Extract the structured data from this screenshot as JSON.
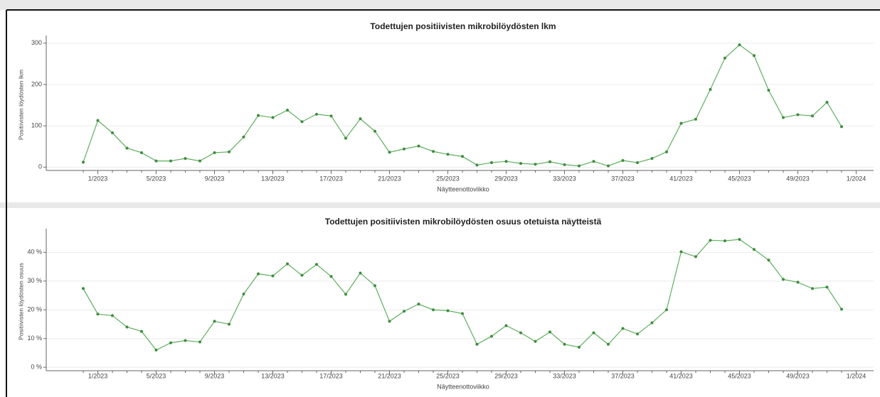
{
  "chart_data": [
    {
      "type": "line",
      "title": "Todettujen positiivisten mikrobilöydösten lkm",
      "x_label": "Näytteenottoviikko",
      "y_label": "Positiivisten löydösten lkm",
      "categories": [
        null,
        "1/2023",
        null,
        null,
        null,
        "5/2023",
        null,
        null,
        null,
        "9/2023",
        null,
        null,
        null,
        "13/2023",
        null,
        null,
        null,
        "17/2023",
        null,
        null,
        null,
        "21/2023",
        null,
        null,
        null,
        "25/2023",
        null,
        null,
        null,
        "29/2023",
        null,
        null,
        null,
        "33/2023",
        null,
        null,
        null,
        "37/2023",
        null,
        null,
        null,
        "41/2023",
        null,
        null,
        null,
        "45/2023",
        null,
        null,
        null,
        "49/2023",
        null,
        null,
        null,
        "1/2024"
      ],
      "values": [
        12,
        113,
        83,
        46,
        35,
        15,
        15,
        21,
        15,
        35,
        37,
        73,
        125,
        120,
        138,
        110,
        128,
        124,
        70,
        117,
        87,
        36,
        44,
        51,
        38,
        31,
        26,
        5,
        11,
        14,
        9,
        7,
        13,
        6,
        3,
        14,
        3,
        16,
        11,
        21,
        37,
        106,
        116,
        188,
        264,
        296,
        270,
        186,
        120,
        127,
        124,
        157,
        98,
        null
      ],
      "color": "#5fae5f",
      "ylim": [
        -8,
        310
      ],
      "yticks": [
        0,
        100,
        200,
        300
      ],
      "grid": true
    },
    {
      "type": "line",
      "title": "Todettujen positiivisten mikrobilöydösten osuus otetuista näytteistä",
      "x_label": "Näytteenottoviikko",
      "y_label": "Positiivisten löydösten osuus",
      "categories": [
        null,
        "1/2023",
        null,
        null,
        null,
        "5/2023",
        null,
        null,
        null,
        "9/2023",
        null,
        null,
        null,
        "13/2023",
        null,
        null,
        null,
        "17/2023",
        null,
        null,
        null,
        "21/2023",
        null,
        null,
        null,
        "25/2023",
        null,
        null,
        null,
        "29/2023",
        null,
        null,
        null,
        "33/2023",
        null,
        null,
        null,
        "37/2023",
        null,
        null,
        null,
        "41/2023",
        null,
        null,
        null,
        "45/2023",
        null,
        null,
        null,
        "49/2023",
        null,
        null,
        null,
        "1/2024"
      ],
      "values": [
        27.4,
        18.5,
        18,
        14,
        12.5,
        6,
        8.5,
        9.3,
        8.8,
        16,
        15,
        25.5,
        32.5,
        31.8,
        36,
        32,
        35.8,
        31.6,
        25.4,
        32.8,
        28.4,
        16,
        19.5,
        22,
        20,
        19.7,
        18.7,
        8,
        10.8,
        14.5,
        12,
        9,
        12.3,
        8,
        7,
        12,
        8,
        13.5,
        11.6,
        15.5,
        20,
        40.2,
        38.5,
        44.2,
        44,
        44.5,
        41,
        37.3,
        30.6,
        29.6,
        27.4,
        27.9,
        20.2,
        null
      ],
      "color": "#5fae5f",
      "ylim": [
        -1.2,
        47
      ],
      "yticks": [
        {
          "value": 0,
          "label": "0 %"
        },
        {
          "value": 10,
          "label": "10 %"
        },
        {
          "value": 20,
          "label": "20 %"
        },
        {
          "value": 30,
          "label": "30 %"
        },
        {
          "value": 40,
          "label": "40 %"
        }
      ],
      "grid": true
    }
  ]
}
